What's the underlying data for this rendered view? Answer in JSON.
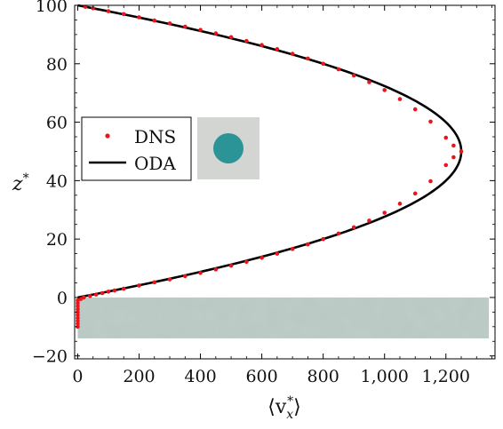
{
  "chart_data": {
    "type": "line",
    "xlabel": "⟨v_x*⟩",
    "ylabel": "z*",
    "xlim": [
      -10,
      1360
    ],
    "ylim": [
      -21,
      100
    ],
    "xticks": [
      0,
      200,
      400,
      600,
      800,
      1000,
      1200
    ],
    "xtick_labels": [
      "0",
      "200",
      "400",
      "600",
      "800",
      "1,000",
      "1,200"
    ],
    "yticks": [
      -20,
      0,
      20,
      40,
      60,
      80,
      100
    ],
    "ytick_labels": [
      "−20",
      "0",
      "20",
      "40",
      "60",
      "80",
      "100"
    ],
    "grid": false,
    "legend_position": "center-left",
    "profile": {
      "peak_velocity": 1250,
      "peak_z": 50,
      "z_min": 0,
      "z_max": 100
    },
    "series": [
      {
        "name": "DNS",
        "style": "dots",
        "color": "#e8161b",
        "points": [
          [
            0,
            -10
          ],
          [
            0,
            -9
          ],
          [
            0,
            -8
          ],
          [
            0,
            -7
          ],
          [
            0,
            -6
          ],
          [
            0,
            -5
          ],
          [
            0,
            -4
          ],
          [
            0,
            -3
          ],
          [
            0,
            -2
          ],
          [
            0,
            -1
          ],
          [
            10,
            -0.5
          ],
          [
            20,
            0
          ],
          [
            40,
            0.5
          ],
          [
            60,
            1
          ],
          [
            80,
            1.5
          ],
          [
            100,
            2
          ],
          [
            120,
            2.4
          ],
          [
            150,
            3
          ],
          [
            200,
            4.1
          ],
          [
            250,
            5.2
          ],
          [
            300,
            6.2
          ],
          [
            350,
            7.3
          ],
          [
            400,
            8.4
          ],
          [
            450,
            9.6
          ],
          [
            500,
            10.9
          ],
          [
            550,
            12.2
          ],
          [
            600,
            13.6
          ],
          [
            650,
            15.0
          ],
          [
            700,
            16.6
          ],
          [
            750,
            18.2
          ],
          [
            800,
            20.0
          ],
          [
            850,
            21.9
          ],
          [
            900,
            24.0
          ],
          [
            950,
            26.3
          ],
          [
            1000,
            29.0
          ],
          [
            1050,
            32.1
          ],
          [
            1100,
            35.6
          ],
          [
            1150,
            39.8
          ],
          [
            1200,
            45.3
          ],
          [
            1225,
            48.0
          ],
          [
            1250,
            50
          ],
          [
            1225,
            52.0
          ],
          [
            1200,
            54.7
          ],
          [
            1150,
            60.2
          ],
          [
            1100,
            64.4
          ],
          [
            1050,
            67.9
          ],
          [
            1000,
            71.0
          ],
          [
            950,
            73.7
          ],
          [
            900,
            76.0
          ],
          [
            850,
            78.1
          ],
          [
            800,
            80.0
          ],
          [
            750,
            81.8
          ],
          [
            700,
            83.4
          ],
          [
            650,
            85.0
          ],
          [
            600,
            86.4
          ],
          [
            550,
            87.8
          ],
          [
            500,
            89.1
          ],
          [
            450,
            90.4
          ],
          [
            400,
            91.6
          ],
          [
            350,
            92.7
          ],
          [
            300,
            93.8
          ],
          [
            250,
            94.8
          ],
          [
            200,
            95.9
          ],
          [
            150,
            97.0
          ],
          [
            100,
            98.0
          ],
          [
            50,
            99.0
          ],
          [
            25,
            99.5
          ]
        ]
      },
      {
        "name": "ODA",
        "style": "solid-line",
        "color": "#000000",
        "points": [
          [
            0,
            0
          ],
          [
            150,
            3
          ],
          [
            300,
            6.2
          ],
          [
            450,
            9.6
          ],
          [
            600,
            13.6
          ],
          [
            750,
            18.2
          ],
          [
            900,
            24.0
          ],
          [
            1000,
            29.0
          ],
          [
            1100,
            35.6
          ],
          [
            1200,
            45.3
          ],
          [
            1250,
            50
          ],
          [
            1200,
            54.7
          ],
          [
            1100,
            64.4
          ],
          [
            1000,
            71.0
          ],
          [
            900,
            76.0
          ],
          [
            750,
            81.8
          ],
          [
            600,
            86.4
          ],
          [
            450,
            90.4
          ],
          [
            300,
            93.8
          ],
          [
            150,
            97.0
          ],
          [
            50,
            99.0
          ],
          [
            25,
            99.5
          ]
        ]
      }
    ],
    "regions": [
      {
        "name": "porous-bed",
        "x_range": [
          0,
          1340
        ],
        "z_range": [
          -14,
          0
        ],
        "color": "#b9c8c3"
      }
    ],
    "colors": {
      "dns": "#e8161b",
      "oda": "#000000",
      "particle": "#2b9496",
      "particle_bg": "#d3d5d2",
      "bed": "#b9c8c3"
    }
  }
}
